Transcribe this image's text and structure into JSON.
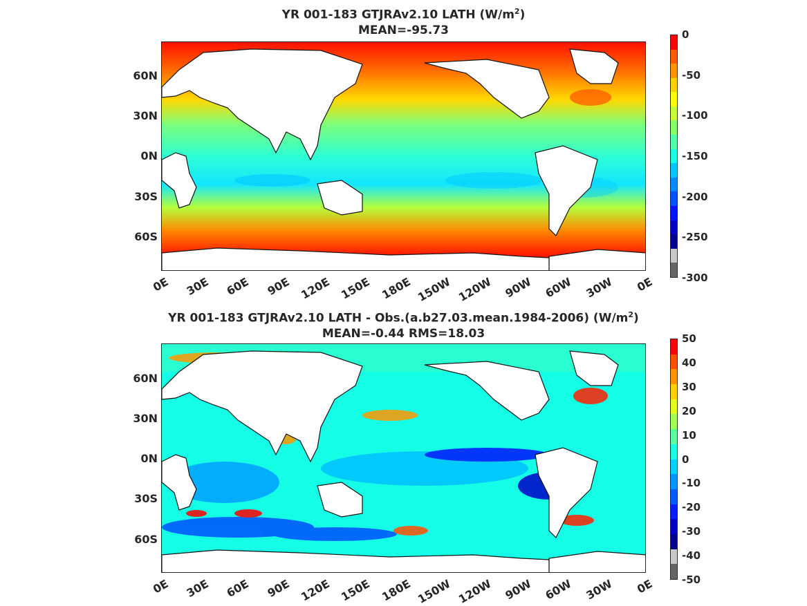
{
  "panel1": {
    "title_pre": "YR 001-183 GTJRAv2.10  LATH (W/m",
    "title_sup": "2",
    "title_post": ")",
    "mean": "MEAN=-95.73",
    "colorbar_labels": [
      "0",
      "-50",
      "-100",
      "-150",
      "-200",
      "-250",
      "-300"
    ]
  },
  "panel2": {
    "title_pre": "YR 001-183 GTJRAv2.10 LATH - Obs.(a.b27.03.mean.1984-2006) (W/m",
    "title_sup": "2",
    "title_post": ")",
    "mean": "MEAN=-0.44 RMS=18.03",
    "colorbar_labels": [
      "50",
      "40",
      "30",
      "20",
      "10",
      "0",
      "-10",
      "-20",
      "-30",
      "-40",
      "-50"
    ]
  },
  "lat_labels": [
    "60N",
    "30N",
    "0N",
    "30S",
    "60S"
  ],
  "lon_labels": [
    "0E",
    "30E",
    "60E",
    "90E",
    "120E",
    "150E",
    "180E",
    "150W",
    "120W",
    "90W",
    "60W",
    "30W",
    "0E"
  ],
  "colors": {
    "colorbar1": [
      "#ff0000",
      "#ff5a00",
      "#ff9600",
      "#ffd200",
      "#ffff00",
      "#c8ff32",
      "#8cff6e",
      "#50ffaa",
      "#14ffe6",
      "#00c8ff",
      "#008cff",
      "#0050ff",
      "#0014ff",
      "#0000c8",
      "#00008c",
      "#c8c8c8",
      "#646464"
    ],
    "colorbar2": [
      "#ff0000",
      "#ff5000",
      "#ff9600",
      "#ffd200",
      "#e6ff14",
      "#a0ff5a",
      "#5affa0",
      "#14ffe6",
      "#00d2ff",
      "#0096ff",
      "#005aff",
      "#001eff",
      "#0000c8",
      "#00008c",
      "#c8c8c8",
      "#646464"
    ]
  }
}
